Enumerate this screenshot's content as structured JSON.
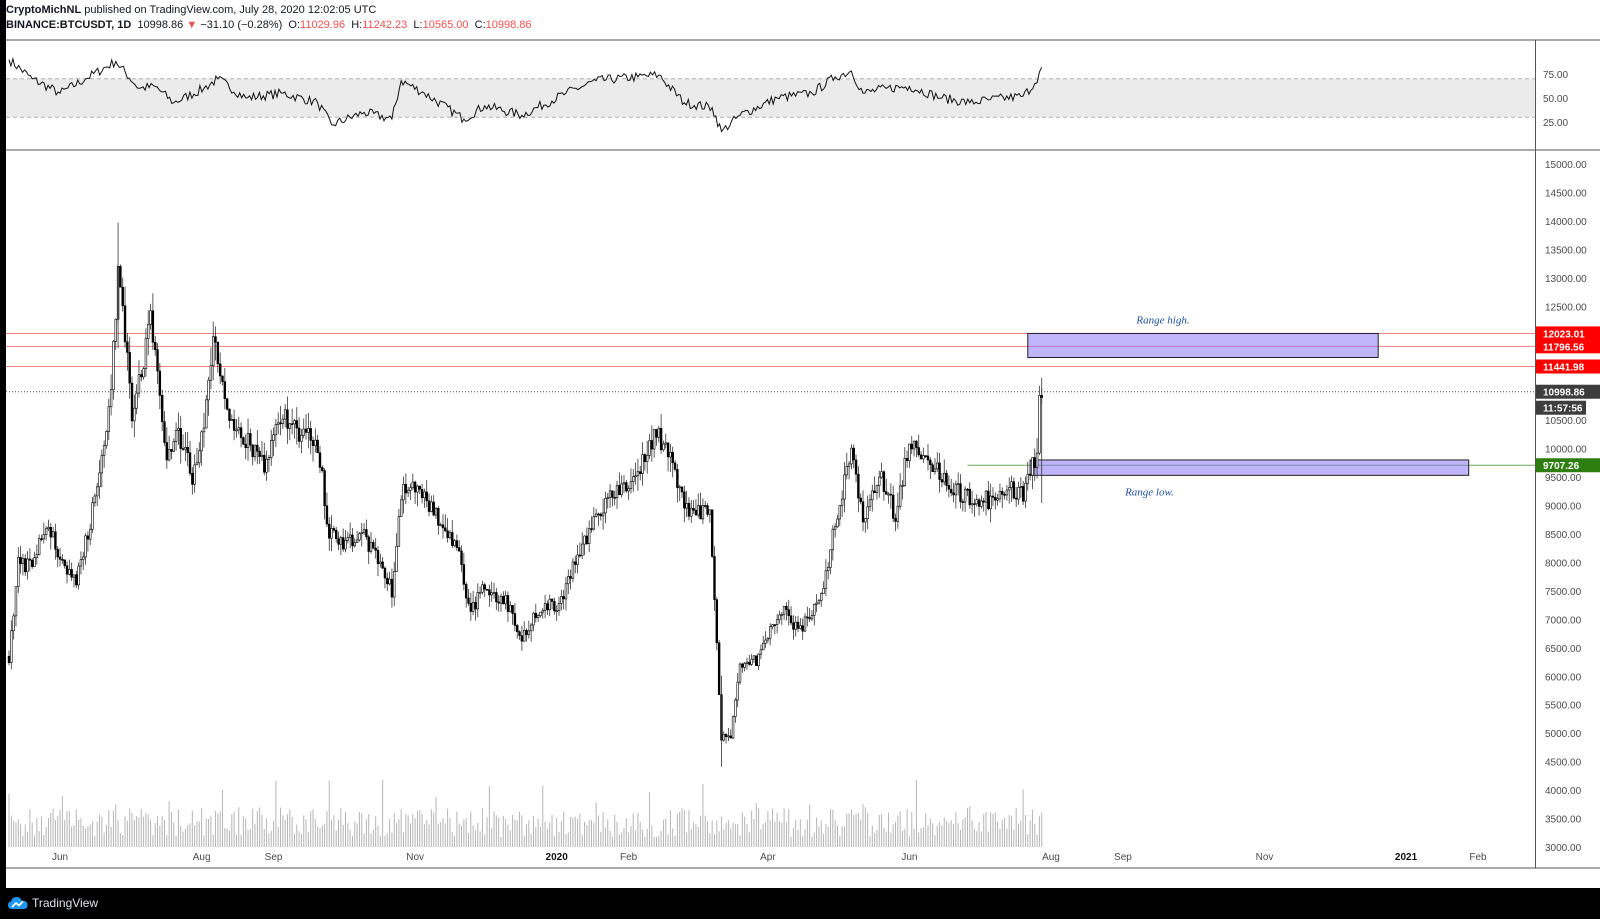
{
  "header": {
    "author": "CryptoMichNL",
    "published_text": "published on TradingView.com, July 28, 2020 12:02:05 UTC",
    "symbol": "BINANCE:BTCUSDT, 1D",
    "last": "10998.86",
    "change": "−31.10 (−0.28%)",
    "o_label": "O:",
    "o_val": "11029.96",
    "h_label": "H:",
    "h_val": "11242.23",
    "l_label": "L:",
    "l_val": "10565.00",
    "c_label": "C:",
    "c_val": "10998.86"
  },
  "footer": {
    "brand": "TradingView"
  },
  "chart_data": {
    "type": "candlestick",
    "symbol": "BINANCE:BTCUSDT",
    "interval": "1D",
    "y_axis": {
      "range": [
        2750,
        15250
      ],
      "ticks": [
        "15000.00",
        "14500.00",
        "14000.00",
        "13500.00",
        "13000.00",
        "12500.00",
        "12000.00",
        "11500.00",
        "11000.00",
        "10500.00",
        "10000.00",
        "9500.00",
        "9000.00",
        "8500.00",
        "8000.00",
        "7500.00",
        "7000.00",
        "6500.00",
        "6000.00",
        "5500.00",
        "5000.00",
        "4500.00",
        "4000.00",
        "3500.00",
        "3000.00"
      ]
    },
    "x_axis": {
      "ticks": [
        {
          "label": "Jun",
          "date": "2019-06-01"
        },
        {
          "label": "Aug",
          "date": "2019-08-01"
        },
        {
          "label": "Sep",
          "date": "2019-09-01"
        },
        {
          "label": "Nov",
          "date": "2019-11-01"
        },
        {
          "label": "2020",
          "date": "2020-01-01",
          "bold": true
        },
        {
          "label": "Feb",
          "date": "2020-02-01"
        },
        {
          "label": "Apr",
          "date": "2020-04-01"
        },
        {
          "label": "Jun",
          "date": "2020-06-01"
        },
        {
          "label": "Aug",
          "date": "2020-08-01"
        },
        {
          "label": "Sep",
          "date": "2020-09-01"
        },
        {
          "label": "Nov",
          "date": "2020-11-01"
        },
        {
          "label": "2021",
          "date": "2021-01-01",
          "bold": true
        },
        {
          "label": "Feb",
          "date": "2021-02-01"
        }
      ]
    },
    "close_path": [
      {
        "date": "2019-05-10",
        "close": 6350
      },
      {
        "date": "2019-05-14",
        "close": 8000
      },
      {
        "date": "2019-05-20",
        "close": 7900
      },
      {
        "date": "2019-05-26",
        "close": 8700
      },
      {
        "date": "2019-06-03",
        "close": 7900
      },
      {
        "date": "2019-06-08",
        "close": 7700
      },
      {
        "date": "2019-06-15",
        "close": 8900
      },
      {
        "date": "2019-06-22",
        "close": 10600
      },
      {
        "date": "2019-06-26",
        "close": 13000
      },
      {
        "date": "2019-06-29",
        "close": 12000
      },
      {
        "date": "2019-07-02",
        "close": 10600
      },
      {
        "date": "2019-07-06",
        "close": 11300
      },
      {
        "date": "2019-07-10",
        "close": 12400
      },
      {
        "date": "2019-07-13",
        "close": 11300
      },
      {
        "date": "2019-07-17",
        "close": 9700
      },
      {
        "date": "2019-07-22",
        "close": 10300
      },
      {
        "date": "2019-07-28",
        "close": 9500
      },
      {
        "date": "2019-08-02",
        "close": 10500
      },
      {
        "date": "2019-08-06",
        "close": 11900
      },
      {
        "date": "2019-08-09",
        "close": 11300
      },
      {
        "date": "2019-08-15",
        "close": 10300
      },
      {
        "date": "2019-08-21",
        "close": 10100
      },
      {
        "date": "2019-08-28",
        "close": 9700
      },
      {
        "date": "2019-09-04",
        "close": 10600
      },
      {
        "date": "2019-09-12",
        "close": 10300
      },
      {
        "date": "2019-09-20",
        "close": 10100
      },
      {
        "date": "2019-09-25",
        "close": 8500
      },
      {
        "date": "2019-10-01",
        "close": 8300
      },
      {
        "date": "2019-10-10",
        "close": 8500
      },
      {
        "date": "2019-10-22",
        "close": 7500
      },
      {
        "date": "2019-10-26",
        "close": 9200
      },
      {
        "date": "2019-11-03",
        "close": 9300
      },
      {
        "date": "2019-11-12",
        "close": 8700
      },
      {
        "date": "2019-11-20",
        "close": 8100
      },
      {
        "date": "2019-11-25",
        "close": 7100
      },
      {
        "date": "2019-11-30",
        "close": 7600
      },
      {
        "date": "2019-12-10",
        "close": 7300
      },
      {
        "date": "2019-12-17",
        "close": 6700
      },
      {
        "date": "2019-12-25",
        "close": 7200
      },
      {
        "date": "2020-01-03",
        "close": 7300
      },
      {
        "date": "2020-01-10",
        "close": 8100
      },
      {
        "date": "2020-01-18",
        "close": 8800
      },
      {
        "date": "2020-01-28",
        "close": 9300
      },
      {
        "date": "2020-02-05",
        "close": 9600
      },
      {
        "date": "2020-02-13",
        "close": 10300
      },
      {
        "date": "2020-02-20",
        "close": 9700
      },
      {
        "date": "2020-02-27",
        "close": 8800
      },
      {
        "date": "2020-03-07",
        "close": 8900
      },
      {
        "date": "2020-03-12",
        "close": 4900
      },
      {
        "date": "2020-03-16",
        "close": 5000
      },
      {
        "date": "2020-03-20",
        "close": 6200
      },
      {
        "date": "2020-03-28",
        "close": 6300
      },
      {
        "date": "2020-04-06",
        "close": 7200
      },
      {
        "date": "2020-04-15",
        "close": 6800
      },
      {
        "date": "2020-04-25",
        "close": 7500
      },
      {
        "date": "2020-04-30",
        "close": 8700
      },
      {
        "date": "2020-05-07",
        "close": 9900
      },
      {
        "date": "2020-05-12",
        "close": 8800
      },
      {
        "date": "2020-05-20",
        "close": 9500
      },
      {
        "date": "2020-05-26",
        "close": 8800
      },
      {
        "date": "2020-06-01",
        "close": 10100
      },
      {
        "date": "2020-06-10",
        "close": 9800
      },
      {
        "date": "2020-06-20",
        "close": 9300
      },
      {
        "date": "2020-06-27",
        "close": 9100
      },
      {
        "date": "2020-07-05",
        "close": 9100
      },
      {
        "date": "2020-07-12",
        "close": 9300
      },
      {
        "date": "2020-07-20",
        "close": 9200
      },
      {
        "date": "2020-07-23",
        "close": 9600
      },
      {
        "date": "2020-07-26",
        "close": 9900
      },
      {
        "date": "2020-07-27",
        "close": 11000
      },
      {
        "date": "2020-07-28",
        "close": 10998.86
      }
    ],
    "extremes": [
      {
        "date": "2019-06-26",
        "high": 13970
      },
      {
        "date": "2020-03-12",
        "low": 4410
      },
      {
        "date": "2020-07-28",
        "high": 11242.23
      }
    ],
    "levels": [
      {
        "value": "12023.01",
        "color": "#ff0000"
      },
      {
        "value": "11796.56",
        "color": "#ff0000"
      },
      {
        "value": "11441.98",
        "color": "#ff0000"
      },
      {
        "value": "10998.86",
        "color": "#4a4a4a",
        "dotted": true
      },
      {
        "value": "9707.26",
        "color": "#2e7d0f"
      }
    ],
    "countdown": "11:57:56",
    "zones": [
      {
        "label": "Range high.",
        "top": 12023.01,
        "bottom": 11600,
        "from": "2020-07-22",
        "to": "2020-12-20"
      },
      {
        "label": "Range low.",
        "top": 9800,
        "bottom": 9530,
        "from": "2020-07-23",
        "to": "2021-01-28"
      }
    ],
    "rsi": {
      "ticks": [
        "75.00",
        "50.00",
        "25.00"
      ],
      "band": [
        30,
        70
      ],
      "path": [
        {
          "date": "2019-05-10",
          "v": 90
        },
        {
          "date": "2019-05-20",
          "v": 70
        },
        {
          "date": "2019-06-01",
          "v": 55
        },
        {
          "date": "2019-06-12",
          "v": 70
        },
        {
          "date": "2019-06-25",
          "v": 88
        },
        {
          "date": "2019-07-05",
          "v": 60
        },
        {
          "date": "2019-07-12",
          "v": 62
        },
        {
          "date": "2019-07-20",
          "v": 45
        },
        {
          "date": "2019-08-02",
          "v": 60
        },
        {
          "date": "2019-08-08",
          "v": 70
        },
        {
          "date": "2019-08-20",
          "v": 50
        },
        {
          "date": "2019-09-05",
          "v": 55
        },
        {
          "date": "2019-09-20",
          "v": 45
        },
        {
          "date": "2019-09-26",
          "v": 22
        },
        {
          "date": "2019-10-10",
          "v": 35
        },
        {
          "date": "2019-10-22",
          "v": 28
        },
        {
          "date": "2019-10-26",
          "v": 68
        },
        {
          "date": "2019-11-05",
          "v": 55
        },
        {
          "date": "2019-11-22",
          "v": 28
        },
        {
          "date": "2019-12-01",
          "v": 42
        },
        {
          "date": "2019-12-17",
          "v": 32
        },
        {
          "date": "2020-01-05",
          "v": 55
        },
        {
          "date": "2020-01-18",
          "v": 68
        },
        {
          "date": "2020-02-05",
          "v": 72
        },
        {
          "date": "2020-02-14",
          "v": 74
        },
        {
          "date": "2020-02-25",
          "v": 45
        },
        {
          "date": "2020-03-08",
          "v": 40
        },
        {
          "date": "2020-03-12",
          "v": 15
        },
        {
          "date": "2020-03-20",
          "v": 32
        },
        {
          "date": "2020-04-05",
          "v": 50
        },
        {
          "date": "2020-04-20",
          "v": 55
        },
        {
          "date": "2020-04-30",
          "v": 72
        },
        {
          "date": "2020-05-07",
          "v": 78
        },
        {
          "date": "2020-05-12",
          "v": 55
        },
        {
          "date": "2020-05-22",
          "v": 60
        },
        {
          "date": "2020-06-01",
          "v": 62
        },
        {
          "date": "2020-06-15",
          "v": 50
        },
        {
          "date": "2020-06-27",
          "v": 45
        },
        {
          "date": "2020-07-05",
          "v": 48
        },
        {
          "date": "2020-07-20",
          "v": 52
        },
        {
          "date": "2020-07-25",
          "v": 65
        },
        {
          "date": "2020-07-28",
          "v": 82
        }
      ]
    }
  }
}
